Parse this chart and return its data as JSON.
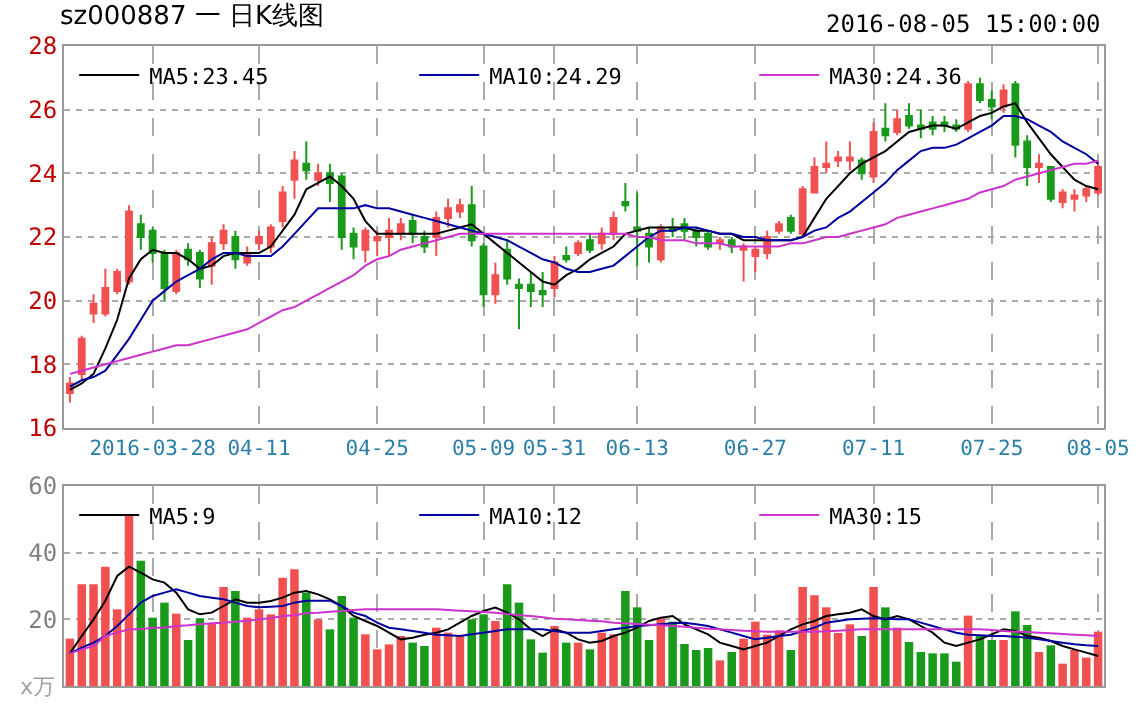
{
  "chart_data": [
    {
      "type": "candlestick",
      "title": "sz000887 一 日K线图",
      "annotations": [
        "2016-08-05 15:00:00"
      ],
      "categories": [
        null,
        null,
        null,
        null,
        null,
        null,
        null,
        "2016-03-28",
        null,
        null,
        null,
        null,
        null,
        null,
        null,
        null,
        "04-11",
        null,
        null,
        null,
        null,
        null,
        null,
        null,
        null,
        null,
        "04-25",
        null,
        null,
        null,
        null,
        null,
        null,
        null,
        null,
        "05-09",
        null,
        null,
        null,
        null,
        null,
        "05-31",
        null,
        null,
        null,
        null,
        null,
        null,
        "06-13",
        null,
        null,
        null,
        null,
        null,
        null,
        null,
        null,
        null,
        "06-27",
        null,
        null,
        null,
        null,
        null,
        null,
        null,
        null,
        null,
        "07-11",
        null,
        null,
        null,
        null,
        null,
        null,
        null,
        null,
        null,
        "07-25",
        null,
        null,
        null,
        null,
        null,
        null,
        null,
        null,
        "08-05"
      ],
      "series": [
        {
          "ohlc": [
            [
              17.1,
              17.6,
              16.8,
              17.4
            ],
            [
              17.7,
              18.9,
              17.5,
              18.8
            ],
            [
              19.6,
              20.2,
              19.3,
              19.9
            ],
            [
              19.6,
              21.0,
              19.5,
              20.4
            ],
            [
              20.3,
              21.0,
              20.2,
              20.9
            ],
            [
              20.6,
              23.0,
              20.5,
              22.8
            ],
            [
              22.4,
              22.7,
              21.6,
              22.0
            ],
            [
              22.2,
              22.3,
              21.2,
              21.5
            ],
            [
              21.5,
              21.6,
              20.0,
              20.4
            ],
            [
              20.3,
              21.6,
              20.2,
              21.5
            ],
            [
              21.6,
              21.8,
              21.1,
              21.3
            ],
            [
              21.5,
              21.6,
              20.4,
              20.7
            ],
            [
              21.1,
              22.0,
              20.5,
              21.8
            ],
            [
              21.8,
              22.4,
              21.6,
              22.2
            ],
            [
              22.0,
              22.2,
              21.0,
              21.3
            ],
            [
              21.2,
              21.7,
              21.1,
              21.5
            ],
            [
              21.8,
              22.2,
              21.6,
              22.0
            ],
            [
              21.7,
              22.4,
              21.5,
              22.3
            ],
            [
              22.5,
              23.6,
              22.3,
              23.4
            ],
            [
              23.8,
              24.7,
              23.2,
              24.4
            ],
            [
              24.3,
              25.0,
              23.8,
              24.1
            ],
            [
              23.8,
              24.3,
              23.6,
              24.0
            ],
            [
              24.0,
              24.3,
              23.1,
              23.7
            ],
            [
              23.9,
              24.0,
              21.6,
              22.0
            ],
            [
              22.1,
              22.3,
              21.3,
              21.7
            ],
            [
              21.6,
              22.3,
              21.2,
              22.2
            ],
            [
              21.9,
              22.2,
              21.4,
              22.0
            ],
            [
              22.0,
              22.6,
              21.4,
              22.2
            ],
            [
              22.1,
              22.6,
              21.9,
              22.4
            ],
            [
              22.5,
              22.7,
              21.8,
              22.1
            ],
            [
              22.0,
              22.2,
              21.5,
              21.7
            ],
            [
              22.0,
              22.8,
              21.4,
              22.6
            ],
            [
              22.6,
              23.2,
              22.3,
              22.9
            ],
            [
              22.8,
              23.2,
              22.6,
              23.0
            ],
            [
              23.0,
              23.6,
              21.7,
              21.9
            ],
            [
              21.7,
              21.8,
              19.8,
              20.2
            ],
            [
              20.2,
              21.2,
              19.9,
              20.8
            ],
            [
              21.6,
              21.9,
              20.5,
              20.7
            ],
            [
              20.5,
              20.7,
              19.1,
              20.4
            ],
            [
              20.5,
              20.9,
              19.8,
              20.3
            ],
            [
              20.3,
              20.9,
              19.8,
              20.2
            ],
            [
              20.4,
              21.4,
              20.1,
              21.2
            ],
            [
              21.4,
              21.7,
              21.2,
              21.3
            ],
            [
              21.5,
              21.9,
              21.4,
              21.8
            ],
            [
              21.9,
              22.1,
              21.5,
              21.6
            ],
            [
              21.8,
              22.3,
              21.6,
              22.1
            ],
            [
              22.1,
              22.8,
              21.9,
              22.6
            ],
            [
              23.1,
              23.7,
              22.8,
              23.0
            ],
            [
              22.3,
              23.4,
              21.1,
              22.2
            ],
            [
              22.1,
              22.3,
              21.2,
              21.7
            ],
            [
              21.3,
              22.4,
              21.2,
              22.3
            ],
            [
              22.3,
              22.6,
              22.0,
              22.2
            ],
            [
              22.4,
              22.6,
              21.9,
              22.2
            ],
            [
              22.2,
              22.3,
              21.7,
              22.0
            ],
            [
              22.1,
              22.2,
              21.6,
              21.7
            ],
            [
              21.8,
              22.0,
              21.6,
              21.9
            ],
            [
              21.9,
              22.0,
              21.5,
              21.7
            ],
            [
              21.6,
              21.8,
              20.6,
              21.7
            ],
            [
              21.4,
              21.7,
              20.9,
              21.6
            ],
            [
              21.5,
              22.2,
              21.3,
              22.0
            ],
            [
              22.2,
              22.5,
              22.1,
              22.4
            ],
            [
              22.6,
              22.7,
              22.1,
              22.2
            ],
            [
              22.1,
              23.6,
              22.0,
              23.5
            ],
            [
              23.4,
              24.5,
              23.4,
              24.2
            ],
            [
              24.2,
              25.0,
              24.0,
              24.3
            ],
            [
              24.4,
              24.7,
              24.2,
              24.5
            ],
            [
              24.4,
              25.0,
              24.1,
              24.5
            ],
            [
              24.4,
              24.5,
              23.8,
              24.0
            ],
            [
              23.9,
              25.6,
              23.7,
              25.3
            ],
            [
              25.4,
              26.2,
              25.0,
              25.2
            ],
            [
              25.3,
              26.0,
              25.2,
              25.7
            ],
            [
              25.8,
              26.2,
              25.4,
              25.5
            ],
            [
              25.5,
              26.0,
              25.1,
              25.4
            ],
            [
              25.6,
              25.8,
              25.2,
              25.4
            ],
            [
              25.6,
              25.8,
              25.3,
              25.5
            ],
            [
              25.5,
              25.7,
              25.3,
              25.4
            ],
            [
              25.4,
              26.9,
              25.3,
              26.8
            ],
            [
              26.8,
              27.0,
              26.2,
              26.3
            ],
            [
              26.3,
              26.6,
              25.7,
              26.1
            ],
            [
              26.1,
              26.8,
              25.9,
              26.6
            ],
            [
              26.8,
              26.9,
              24.5,
              24.9
            ],
            [
              25.0,
              25.2,
              23.6,
              24.2
            ],
            [
              24.2,
              24.6,
              23.7,
              24.3
            ],
            [
              24.2,
              24.2,
              23.1,
              23.2
            ],
            [
              23.1,
              23.5,
              22.9,
              23.4
            ],
            [
              23.2,
              23.5,
              22.8,
              23.3
            ],
            [
              23.3,
              23.6,
              23.1,
              23.5
            ],
            [
              23.4,
              24.4,
              23.3,
              24.2
            ]
          ],
          "colors": [
            "#f05050",
            "#f05050",
            "#f05050",
            "#f05050",
            "#f05050",
            "#f05050",
            "#1a9a1a",
            "#1a9a1a",
            "#1a9a1a",
            "#f05050",
            "#1a9a1a",
            "#1a9a1a",
            "#f05050",
            "#f05050",
            "#1a9a1a",
            "#f05050",
            "#f05050",
            "#f05050",
            "#f05050",
            "#f05050",
            "#1a9a1a",
            "#f05050",
            "#1a9a1a",
            "#1a9a1a",
            "#1a9a1a",
            "#f05050",
            "#f05050",
            "#f05050",
            "#f05050",
            "#1a9a1a",
            "#1a9a1a",
            "#f05050",
            "#f05050",
            "#f05050",
            "#1a9a1a",
            "#1a9a1a",
            "#f05050",
            "#1a9a1a",
            "#1a9a1a",
            "#1a9a1a",
            "#1a9a1a",
            "#f05050",
            "#1a9a1a",
            "#f05050",
            "#1a9a1a",
            "#f05050",
            "#f05050",
            "#1a9a1a",
            "#1a9a1a",
            "#1a9a1a",
            "#f05050",
            "#1a9a1a",
            "#1a9a1a",
            "#1a9a1a",
            "#1a9a1a",
            "#f05050",
            "#1a9a1a",
            "#f05050",
            "#f05050",
            "#f05050",
            "#f05050",
            "#1a9a1a",
            "#f05050",
            "#f05050",
            "#f05050",
            "#f05050",
            "#f05050",
            "#1a9a1a",
            "#f05050",
            "#1a9a1a",
            "#f05050",
            "#1a9a1a",
            "#1a9a1a",
            "#1a9a1a",
            "#1a9a1a",
            "#1a9a1a",
            "#f05050",
            "#1a9a1a",
            "#1a9a1a",
            "#f05050",
            "#1a9a1a",
            "#1a9a1a",
            "#f05050",
            "#1a9a1a",
            "#f05050",
            "#f05050",
            "#f05050",
            "#f05050"
          ]
        },
        {
          "type": "line",
          "name": "MA5:23.45",
          "color": "#000000",
          "values": [
            17.2,
            17.4,
            17.7,
            18.5,
            19.4,
            20.7,
            21.3,
            21.6,
            21.5,
            21.5,
            21.3,
            21.0,
            21.1,
            21.4,
            21.5,
            21.5,
            21.5,
            21.7,
            22.2,
            22.7,
            23.5,
            23.7,
            23.9,
            23.6,
            23.2,
            22.5,
            22.1,
            22.1,
            22.1,
            22.1,
            22.1,
            22.1,
            22.2,
            22.3,
            22.4,
            22.1,
            21.8,
            21.5,
            21.2,
            20.9,
            20.6,
            20.5,
            20.8,
            21.0,
            21.3,
            21.5,
            21.7,
            22.1,
            22.2,
            22.3,
            22.3,
            22.3,
            22.3,
            22.2,
            22.2,
            22.1,
            22.1,
            21.9,
            21.9,
            21.9,
            21.9,
            21.9,
            22.0,
            22.6,
            23.2,
            23.6,
            24.0,
            24.3,
            24.5,
            24.7,
            25.0,
            25.3,
            25.4,
            25.5,
            25.5,
            25.4,
            25.6,
            25.8,
            25.9,
            26.1,
            26.2,
            25.6,
            25.1,
            24.6,
            24.2,
            23.8,
            23.6,
            23.5
          ]
        },
        {
          "type": "line",
          "name": "MA10:24.29",
          "color": "#0000a0",
          "values": [
            17.3,
            17.5,
            17.6,
            17.8,
            18.3,
            18.8,
            19.4,
            20.0,
            20.3,
            20.6,
            20.8,
            21.0,
            21.3,
            21.5,
            21.5,
            21.4,
            21.4,
            21.4,
            21.7,
            22.1,
            22.5,
            22.9,
            22.9,
            22.9,
            22.9,
            23.0,
            22.9,
            22.9,
            22.8,
            22.7,
            22.6,
            22.5,
            22.4,
            22.3,
            22.2,
            22.1,
            22.0,
            21.9,
            21.7,
            21.5,
            21.3,
            21.2,
            21.0,
            20.9,
            20.9,
            21.0,
            21.1,
            21.4,
            21.7,
            22.0,
            22.2,
            22.2,
            22.3,
            22.3,
            22.2,
            22.1,
            22.1,
            22.0,
            22.0,
            21.9,
            21.9,
            21.9,
            22.0,
            22.2,
            22.3,
            22.6,
            22.8,
            23.1,
            23.4,
            23.7,
            24.1,
            24.4,
            24.7,
            24.8,
            24.8,
            24.9,
            25.1,
            25.3,
            25.5,
            25.8,
            25.8,
            25.7,
            25.5,
            25.3,
            25.0,
            24.8,
            24.6,
            24.3
          ]
        },
        {
          "type": "line",
          "name": "MA30:24.36",
          "color": "#cc33cc",
          "values": [
            17.7,
            17.8,
            17.9,
            18.0,
            18.1,
            18.2,
            18.3,
            18.4,
            18.5,
            18.6,
            18.6,
            18.7,
            18.8,
            18.9,
            19.0,
            19.1,
            19.3,
            19.5,
            19.7,
            19.8,
            20.0,
            20.2,
            20.4,
            20.6,
            20.8,
            21.1,
            21.3,
            21.4,
            21.6,
            21.7,
            21.8,
            21.9,
            22.0,
            22.1,
            22.1,
            22.1,
            22.1,
            22.1,
            22.1,
            22.1,
            22.1,
            22.1,
            22.1,
            22.1,
            22.1,
            22.1,
            22.1,
            22.1,
            22.0,
            22.0,
            21.9,
            21.9,
            21.9,
            21.8,
            21.8,
            21.8,
            21.7,
            21.7,
            21.7,
            21.7,
            21.7,
            21.8,
            21.8,
            21.9,
            22.0,
            22.0,
            22.1,
            22.2,
            22.3,
            22.4,
            22.6,
            22.7,
            22.8,
            22.9,
            23.0,
            23.1,
            23.2,
            23.4,
            23.5,
            23.6,
            23.8,
            23.9,
            24.0,
            24.1,
            24.2,
            24.3,
            24.3,
            24.4
          ]
        }
      ],
      "ylim": [
        16,
        28
      ],
      "yticks": [
        16,
        18,
        20,
        22,
        24,
        26,
        28
      ],
      "grid": true,
      "legend": "top left",
      "marker": "none",
      "line_style": "solid"
    },
    {
      "type": "bar",
      "ylabel": "x万",
      "categories": [
        null,
        null,
        null,
        null,
        null,
        null,
        null,
        null,
        null,
        null,
        null,
        null,
        null,
        null,
        null,
        null,
        null,
        null,
        null,
        null,
        null,
        null,
        null,
        null,
        null,
        null,
        null,
        null,
        null,
        null,
        null,
        null,
        null,
        null,
        null,
        null,
        null,
        null,
        null,
        null,
        null,
        null,
        null,
        null,
        null,
        null,
        null,
        null,
        null,
        null,
        null,
        null,
        null,
        null,
        null,
        null,
        null,
        null,
        null,
        null,
        null,
        null,
        null,
        null,
        null,
        null,
        null,
        null,
        null,
        null,
        null,
        null,
        null,
        null,
        null,
        null,
        null,
        null,
        null,
        null,
        null,
        null,
        null,
        null,
        null,
        null,
        null,
        null
      ],
      "series": [
        {
          "values": [
            14.2,
            30.5,
            30.5,
            35.8,
            23,
            51.6,
            37.6,
            20.5,
            25,
            21.7,
            13.8,
            20.3,
            18.9,
            29.7,
            28.5,
            20.5,
            23,
            21.5,
            32.5,
            35,
            28,
            20,
            17,
            27,
            20.5,
            15.5,
            11,
            12.5,
            15,
            13,
            12,
            17.5,
            16,
            15,
            20,
            21.5,
            19.5,
            30.5,
            25,
            14,
            10,
            18,
            13,
            13,
            11,
            16,
            15.5,
            28.5,
            23.6,
            13.8,
            20.3,
            19.3,
            12.6,
            10.8,
            11.4,
            7.7,
            10.2,
            14.2,
            19.3,
            15.4,
            16.7,
            10.8,
            29.7,
            27.2,
            23.6,
            15.9,
            18.5,
            15,
            29.7,
            23.6,
            17.5,
            13.2,
            10.2,
            9.8,
            9.8,
            7.3,
            21.1,
            15.2,
            13.8,
            13.8,
            22.4,
            18.3,
            10.2,
            12.2,
            6.7,
            10.8,
            8.5,
            16.3
          ],
          "colors": [
            "#f05050",
            "#f05050",
            "#f05050",
            "#f05050",
            "#f05050",
            "#f05050",
            "#1a9a1a",
            "#1a9a1a",
            "#1a9a1a",
            "#f05050",
            "#1a9a1a",
            "#1a9a1a",
            "#f05050",
            "#f05050",
            "#1a9a1a",
            "#f05050",
            "#f05050",
            "#f05050",
            "#f05050",
            "#f05050",
            "#1a9a1a",
            "#f05050",
            "#1a9a1a",
            "#1a9a1a",
            "#1a9a1a",
            "#f05050",
            "#f05050",
            "#f05050",
            "#f05050",
            "#1a9a1a",
            "#1a9a1a",
            "#f05050",
            "#f05050",
            "#f05050",
            "#1a9a1a",
            "#1a9a1a",
            "#f05050",
            "#1a9a1a",
            "#1a9a1a",
            "#1a9a1a",
            "#1a9a1a",
            "#f05050",
            "#1a9a1a",
            "#f05050",
            "#1a9a1a",
            "#f05050",
            "#f05050",
            "#1a9a1a",
            "#1a9a1a",
            "#1a9a1a",
            "#f05050",
            "#1a9a1a",
            "#1a9a1a",
            "#1a9a1a",
            "#1a9a1a",
            "#f05050",
            "#1a9a1a",
            "#f05050",
            "#f05050",
            "#f05050",
            "#f05050",
            "#1a9a1a",
            "#f05050",
            "#f05050",
            "#f05050",
            "#f05050",
            "#f05050",
            "#1a9a1a",
            "#f05050",
            "#1a9a1a",
            "#f05050",
            "#1a9a1a",
            "#1a9a1a",
            "#1a9a1a",
            "#1a9a1a",
            "#1a9a1a",
            "#f05050",
            "#1a9a1a",
            "#1a9a1a",
            "#f05050",
            "#1a9a1a",
            "#1a9a1a",
            "#f05050",
            "#1a9a1a",
            "#f05050",
            "#f05050",
            "#f05050",
            "#f05050"
          ]
        },
        {
          "type": "line",
          "name": "MA5:9",
          "color": "#000000",
          "values": [
            9.8,
            15,
            20,
            25.6,
            33,
            35.8,
            34,
            32,
            31,
            28,
            23,
            21.5,
            22,
            24,
            26,
            25,
            25,
            25.5,
            26.5,
            28,
            28.5,
            27.5,
            26,
            24,
            21,
            19.5,
            18,
            16,
            14,
            14.5,
            15.4,
            16,
            17,
            19,
            21,
            22.5,
            23.5,
            22,
            20,
            17,
            15,
            17,
            16,
            14,
            13,
            13.5,
            15,
            16,
            17.5,
            19.5,
            20.5,
            21,
            18.5,
            17,
            15.5,
            13,
            12,
            11,
            12,
            13,
            15,
            17,
            18.5,
            19.5,
            21,
            21.5,
            22,
            23,
            21,
            20,
            21,
            20,
            18,
            16,
            13,
            12,
            13,
            14,
            15.5,
            17,
            16.5,
            15,
            14.5,
            13.5,
            12,
            11,
            10,
            9
          ]
        },
        {
          "type": "line",
          "name": "MA10:12",
          "color": "#0000a0",
          "values": [
            9.8,
            11.5,
            13,
            15,
            18,
            21.5,
            25,
            27,
            28,
            29,
            28,
            27,
            26.5,
            26,
            25,
            24,
            23.6,
            23.8,
            24,
            25,
            25.6,
            25.6,
            25.6,
            24,
            22,
            21,
            19,
            17.5,
            17,
            16.5,
            16,
            15.4,
            15.2,
            15,
            15.5,
            16,
            16.5,
            17,
            17,
            17,
            17,
            16.5,
            16,
            16,
            16,
            16.5,
            17,
            17.5,
            18,
            18.2,
            18.5,
            18.8,
            19,
            18.5,
            18,
            17,
            16,
            15,
            14,
            14.5,
            15,
            15.4,
            16.5,
            17.5,
            19,
            19.5,
            20,
            20.2,
            20.3,
            20.2,
            20,
            20,
            19,
            18,
            17,
            16,
            15.4,
            15.2,
            15,
            15,
            14.8,
            14.5,
            14,
            13.5,
            13,
            12.5,
            12.2,
            12
          ]
        },
        {
          "type": "line",
          "name": "MA30:15",
          "color": "#cc33cc",
          "values": [
            9.8,
            11,
            12,
            15,
            16,
            17,
            17,
            17.5,
            17.5,
            18,
            18.2,
            18.5,
            18.8,
            19,
            19.3,
            19.6,
            20,
            20.3,
            21,
            21.2,
            21.8,
            22,
            22.3,
            22.5,
            22.8,
            23,
            23,
            23,
            23,
            23,
            23,
            23,
            22.8,
            22.6,
            22.4,
            22.2,
            22,
            21.6,
            21.2,
            21,
            20.6,
            20.2,
            20,
            19.8,
            19.6,
            19.4,
            19,
            18.8,
            18.6,
            18.4,
            18.2,
            18,
            17.8,
            17.5,
            17.2,
            17,
            16.8,
            16.6,
            16.4,
            16.3,
            16.3,
            16.3,
            16.3,
            16.3,
            16.4,
            16.6,
            16.8,
            17,
            17,
            17,
            17,
            17,
            17,
            17,
            17,
            17,
            17,
            17,
            16.8,
            16.5,
            16.3,
            16.2,
            16,
            15.8,
            15.6,
            15.4,
            15.2,
            15
          ]
        }
      ],
      "ylim": [
        0,
        60
      ],
      "yticks": [
        20,
        40,
        60
      ],
      "tick_labels": "y",
      "grid": true,
      "legend": "top left",
      "marker": "none",
      "line_style": "solid"
    }
  ]
}
